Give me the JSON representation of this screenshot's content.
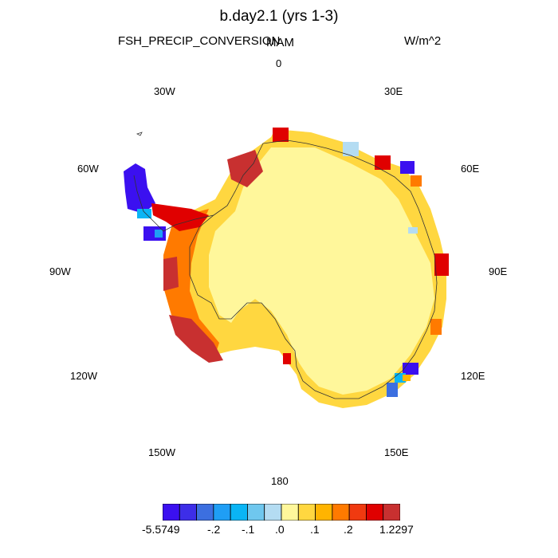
{
  "title": "b.day2.1 (yrs 1-3)",
  "variable": "FSH_PRECIP_CONVERSION",
  "season": "MAM",
  "units": "W/m^2",
  "longitude_labels": {
    "lon_0": "0",
    "lon_30e": "30E",
    "lon_60e": "60E",
    "lon_90e": "90E",
    "lon_120e": "120E",
    "lon_150e": "150E",
    "lon_180": "180",
    "lon_150w": "150W",
    "lon_120w": "120W",
    "lon_90w": "90W",
    "lon_60w": "60W",
    "lon_30w": "30W"
  },
  "colorbar": {
    "colors": [
      "#3b10f0",
      "#3d2ee8",
      "#3c6fe0",
      "#1f9ef5",
      "#0ab5f5",
      "#6fc7ee",
      "#b4dcf2",
      "#fff79b",
      "#ffd740",
      "#ffb400",
      "#ff7a00",
      "#f03a10",
      "#e00000",
      "#c83030"
    ],
    "labels": [
      "-5.5749",
      "-.2",
      "-.1",
      ".0",
      ".1",
      ".2",
      "1.2297"
    ]
  },
  "map_style": {
    "projection": "south-polar-stereographic",
    "interior_color": "#fff79b",
    "coastline_color": "#333333"
  }
}
